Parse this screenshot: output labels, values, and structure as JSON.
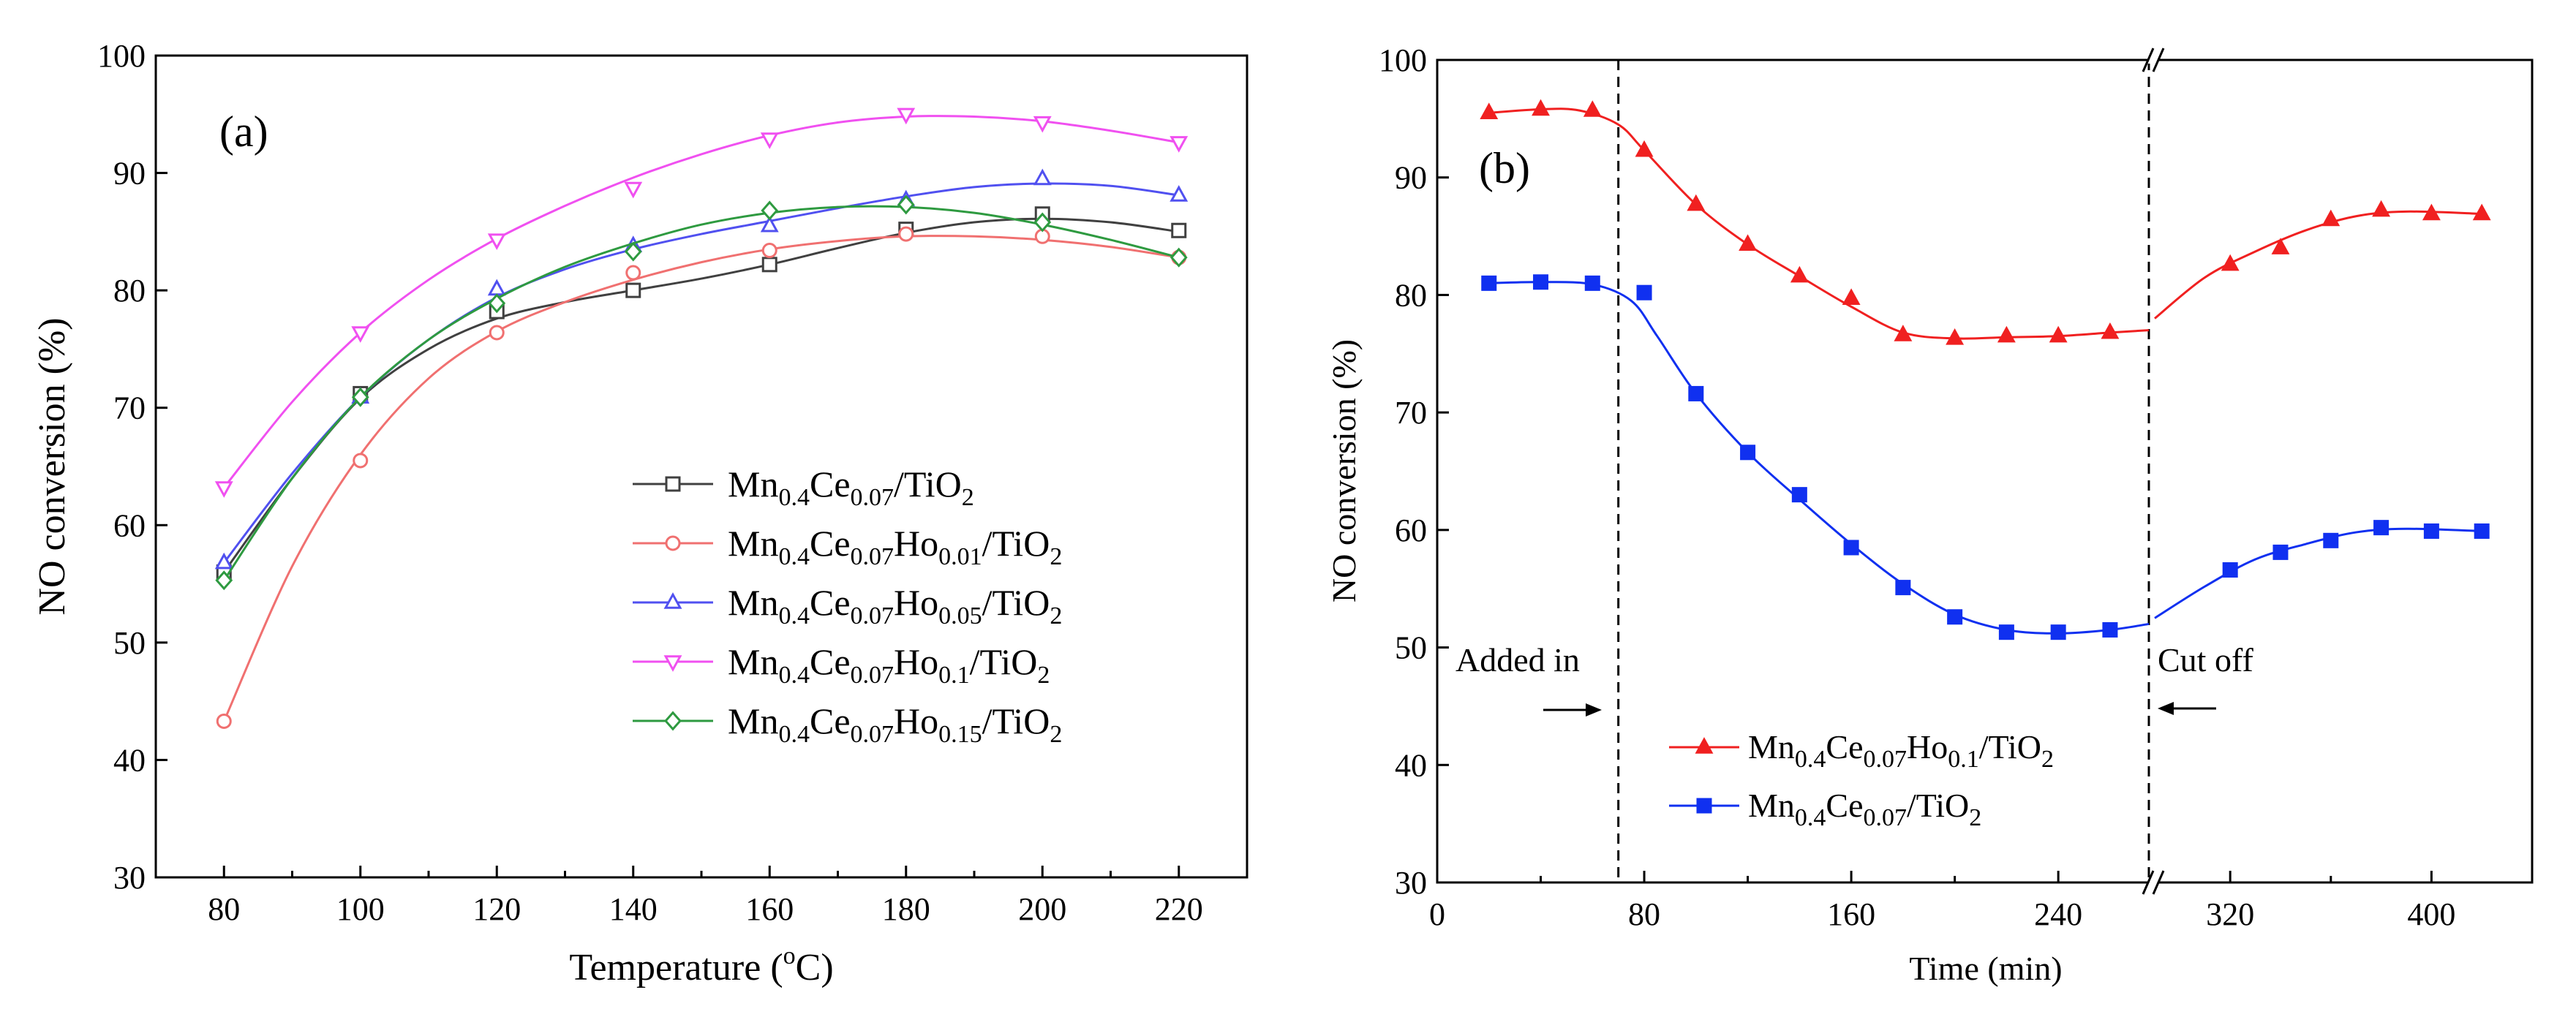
{
  "chart_data": [
    {
      "type": "line",
      "panel_label": "(a)",
      "xlabel": "Temperature (°C)",
      "ylabel": "NO conversion (%)",
      "xlim": [
        70,
        230
      ],
      "ylim": [
        30,
        100
      ],
      "xticks": [
        80,
        100,
        120,
        140,
        160,
        180,
        200,
        220
      ],
      "yticks": [
        30,
        40,
        50,
        60,
        70,
        80,
        90,
        100
      ],
      "x": [
        80,
        100,
        120,
        140,
        160,
        180,
        200,
        220
      ],
      "legend_position": "center-right",
      "series": [
        {
          "name": "Mn0.4Ce0.07/TiO2",
          "label_parts": [
            "Mn",
            "0.4",
            "Ce",
            "0.07",
            "/TiO",
            "2"
          ],
          "color": "#404040",
          "marker": "square",
          "values": [
            56.0,
            71.2,
            78.2,
            80.0,
            82.2,
            85.2,
            86.5,
            85.1
          ],
          "fit": [
            [
              80,
              56.0
            ],
            [
              90,
              64.0
            ],
            [
              100,
              70.8
            ],
            [
              110,
              75.0
            ],
            [
              120,
              77.6
            ],
            [
              130,
              79.0
            ],
            [
              140,
              80.0
            ],
            [
              150,
              81.0
            ],
            [
              160,
              82.2
            ],
            [
              170,
              83.6
            ],
            [
              180,
              84.9
            ],
            [
              190,
              85.8
            ],
            [
              200,
              86.1
            ],
            [
              210,
              85.8
            ],
            [
              220,
              85.0
            ]
          ]
        },
        {
          "name": "Mn0.4Ce0.07Ho0.01/TiO2",
          "label_parts": [
            "Mn",
            "0.4",
            "Ce",
            "0.07",
            "Ho",
            "0.01",
            "/TiO",
            "2"
          ],
          "color": "#f07070",
          "marker": "circle",
          "values": [
            43.3,
            65.5,
            76.4,
            81.5,
            83.4,
            84.8,
            84.6,
            82.8
          ],
          "fit": [
            [
              80,
              43.3
            ],
            [
              90,
              56.5
            ],
            [
              100,
              66.0
            ],
            [
              110,
              72.5
            ],
            [
              120,
              76.5
            ],
            [
              130,
              79.0
            ],
            [
              140,
              80.9
            ],
            [
              150,
              82.4
            ],
            [
              160,
              83.5
            ],
            [
              170,
              84.2
            ],
            [
              180,
              84.6
            ],
            [
              190,
              84.6
            ],
            [
              200,
              84.3
            ],
            [
              210,
              83.7
            ],
            [
              220,
              82.8
            ]
          ]
        },
        {
          "name": "Mn0.4Ce0.07Ho0.05/TiO2",
          "label_parts": [
            "Mn",
            "0.4",
            "Ce",
            "0.07",
            "Ho",
            "0.05",
            "/TiO",
            "2"
          ],
          "color": "#5050f0",
          "marker": "triangle-up",
          "values": [
            56.8,
            70.9,
            80.1,
            83.8,
            85.5,
            87.7,
            89.5,
            88.1
          ],
          "fit": [
            [
              80,
              56.8
            ],
            [
              90,
              64.4
            ],
            [
              100,
              70.9
            ],
            [
              110,
              75.8
            ],
            [
              120,
              79.4
            ],
            [
              130,
              81.8
            ],
            [
              140,
              83.5
            ],
            [
              150,
              84.8
            ],
            [
              160,
              85.9
            ],
            [
              170,
              87.0
            ],
            [
              180,
              88.0
            ],
            [
              190,
              88.8
            ],
            [
              200,
              89.1
            ],
            [
              210,
              88.9
            ],
            [
              220,
              88.1
            ]
          ]
        },
        {
          "name": "Mn0.4Ce0.07Ho0.1/TiO2",
          "label_parts": [
            "Mn",
            "0.4",
            "Ce",
            "0.07",
            "Ho",
            "0.1",
            "/TiO",
            "2"
          ],
          "color": "#f050f0",
          "marker": "triangle-down",
          "values": [
            63.2,
            76.4,
            84.3,
            88.7,
            92.9,
            95.0,
            94.3,
            92.6
          ],
          "fit": [
            [
              80,
              63.2
            ],
            [
              90,
              70.5
            ],
            [
              100,
              76.4
            ],
            [
              110,
              80.9
            ],
            [
              120,
              84.4
            ],
            [
              130,
              87.2
            ],
            [
              140,
              89.6
            ],
            [
              150,
              91.6
            ],
            [
              160,
              93.2
            ],
            [
              170,
              94.3
            ],
            [
              180,
              94.8
            ],
            [
              190,
              94.8
            ],
            [
              200,
              94.4
            ],
            [
              210,
              93.6
            ],
            [
              220,
              92.6
            ]
          ]
        },
        {
          "name": "Mn0.4Ce0.07Ho0.15/TiO2",
          "label_parts": [
            "Mn",
            "0.4",
            "Ce",
            "0.07",
            "Ho",
            "0.15",
            "/TiO",
            "2"
          ],
          "color": "#2e9a40",
          "marker": "diamond",
          "values": [
            55.3,
            70.9,
            78.9,
            83.3,
            86.8,
            87.3,
            85.8,
            82.8
          ],
          "fit": [
            [
              80,
              55.3
            ],
            [
              90,
              64.0
            ],
            [
              100,
              70.9
            ],
            [
              110,
              75.8
            ],
            [
              120,
              79.3
            ],
            [
              130,
              82.0
            ],
            [
              140,
              84.0
            ],
            [
              150,
              85.6
            ],
            [
              160,
              86.6
            ],
            [
              170,
              87.1
            ],
            [
              180,
              87.1
            ],
            [
              190,
              86.6
            ],
            [
              200,
              85.6
            ],
            [
              210,
              84.3
            ],
            [
              220,
              82.8
            ]
          ]
        }
      ]
    },
    {
      "type": "line",
      "panel_label": "(b)",
      "xlabel": "Time (min)",
      "ylabel": "NO conversion (%)",
      "ylim": [
        30,
        100
      ],
      "yticks": [
        30,
        40,
        50,
        60,
        70,
        80,
        90,
        100
      ],
      "xticks": [
        0,
        80,
        160,
        240,
        320,
        400
      ],
      "x_segments": [
        [
          0,
          275
        ],
        [
          290,
          440
        ]
      ],
      "axis_break": true,
      "legend_position": "center",
      "annotations": [
        {
          "text": "Added in",
          "x": 70,
          "arrow": "right"
        },
        {
          "text": "Cut off",
          "x": 275,
          "arrow": "left"
        }
      ],
      "vlines": [
        70,
        275
      ],
      "series": [
        {
          "name": "Mn0.4Ce0.07Ho0.1/TiO2",
          "label_parts": [
            "Mn",
            "0.4",
            "Ce",
            "0.07",
            "Ho",
            "0.1",
            "/TiO",
            "2"
          ],
          "color": "#f02020",
          "marker": "triangle-up",
          "points": [
            [
              20,
              95.5
            ],
            [
              40,
              95.8
            ],
            [
              60,
              95.7
            ],
            [
              80,
              92.3
            ],
            [
              100,
              87.7
            ],
            [
              120,
              84.3
            ],
            [
              140,
              81.6
            ],
            [
              160,
              79.7
            ],
            [
              180,
              76.6
            ],
            [
              200,
              76.3
            ],
            [
              220,
              76.5
            ],
            [
              240,
              76.5
            ],
            [
              260,
              76.8
            ],
            [
              320,
              82.6
            ],
            [
              340,
              84.0
            ],
            [
              360,
              86.4
            ],
            [
              380,
              87.2
            ],
            [
              400,
              86.9
            ],
            [
              420,
              86.9
            ]
          ],
          "fit1": [
            [
              20,
              95.5
            ],
            [
              40,
              95.8
            ],
            [
              55,
              95.7
            ],
            [
              70,
              94.5
            ],
            [
              80,
              92.3
            ],
            [
              100,
              87.7
            ],
            [
              120,
              84.3
            ],
            [
              140,
              81.6
            ],
            [
              160,
              79.0
            ],
            [
              180,
              76.8
            ],
            [
              200,
              76.3
            ],
            [
              220,
              76.4
            ],
            [
              240,
              76.5
            ],
            [
              260,
              76.8
            ],
            [
              275,
              77.0
            ]
          ],
          "fit2": [
            [
              290,
              78.0
            ],
            [
              310,
              81.5
            ],
            [
              330,
              83.7
            ],
            [
              350,
              85.5
            ],
            [
              370,
              86.7
            ],
            [
              390,
              87.1
            ],
            [
              420,
              86.9
            ]
          ]
        },
        {
          "name": "Mn0.4Ce0.07/TiO2",
          "label_parts": [
            "Mn",
            "0.4",
            "Ce",
            "0.07",
            "/TiO",
            "2"
          ],
          "color": "#1030f0",
          "marker": "square",
          "points": [
            [
              20,
              81.0
            ],
            [
              40,
              81.1
            ],
            [
              60,
              81.0
            ],
            [
              80,
              80.2
            ],
            [
              100,
              71.6
            ],
            [
              120,
              66.6
            ],
            [
              140,
              63.0
            ],
            [
              160,
              58.5
            ],
            [
              180,
              55.1
            ],
            [
              200,
              52.6
            ],
            [
              220,
              51.3
            ],
            [
              240,
              51.3
            ],
            [
              260,
              51.5
            ],
            [
              320,
              56.6
            ],
            [
              340,
              58.1
            ],
            [
              360,
              59.1
            ],
            [
              380,
              60.2
            ],
            [
              400,
              59.9
            ],
            [
              420,
              59.9
            ]
          ],
          "fit1": [
            [
              20,
              81.0
            ],
            [
              40,
              81.1
            ],
            [
              60,
              80.9
            ],
            [
              75,
              79.5
            ],
            [
              85,
              76.5
            ],
            [
              100,
              71.6
            ],
            [
              120,
              66.6
            ],
            [
              140,
              62.6
            ],
            [
              160,
              58.8
            ],
            [
              180,
              55.4
            ],
            [
              200,
              52.8
            ],
            [
              220,
              51.5
            ],
            [
              240,
              51.2
            ],
            [
              260,
              51.5
            ],
            [
              275,
              52.0
            ]
          ],
          "fit2": [
            [
              290,
              52.5
            ],
            [
              310,
              55.2
            ],
            [
              330,
              57.5
            ],
            [
              350,
              58.8
            ],
            [
              370,
              59.8
            ],
            [
              390,
              60.1
            ],
            [
              420,
              59.9
            ]
          ]
        }
      ]
    }
  ]
}
